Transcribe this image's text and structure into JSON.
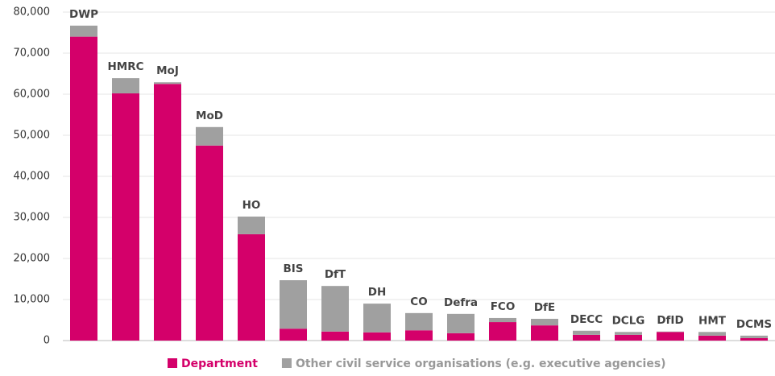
{
  "chart_data": {
    "type": "stacked-bar",
    "categories": [
      "DWP",
      "HMRC",
      "MoJ",
      "MoD",
      "HO",
      "BIS",
      "DfT",
      "DH",
      "CO",
      "Defra",
      "FCO",
      "DfE",
      "DECC",
      "DCLG",
      "DfID",
      "HMT",
      "DCMS"
    ],
    "series": [
      {
        "name": "Department",
        "color": "#d4006a",
        "values": [
          74000,
          60200,
          62500,
          47500,
          25900,
          2900,
          2200,
          2000,
          2500,
          1800,
          4500,
          3700,
          1400,
          1400,
          2100,
          1200,
          600
        ]
      },
      {
        "name": "Other civil service organisations (e.g. executive agencies)",
        "color": "#a0a0a0",
        "values": [
          2700,
          3700,
          400,
          4500,
          4300,
          11800,
          11100,
          7000,
          4200,
          4700,
          1000,
          1600,
          1000,
          700,
          100,
          900,
          600
        ]
      }
    ],
    "ylim": [
      0,
      80000
    ],
    "yticks": [
      0,
      {
        "value": 10000,
        "label": "10,000"
      },
      {
        "value": 20000,
        "label": "20,000"
      },
      {
        "value": 30000,
        "label": "30,000"
      },
      {
        "value": 40000,
        "label": "40,000"
      },
      {
        "value": 50000,
        "label": "50,000"
      },
      {
        "value": 60000,
        "label": "60,000"
      },
      {
        "value": 70000,
        "label": "70,000"
      },
      {
        "value": 80000,
        "label": "80,000"
      }
    ],
    "grid": true,
    "legend": "bottom"
  }
}
